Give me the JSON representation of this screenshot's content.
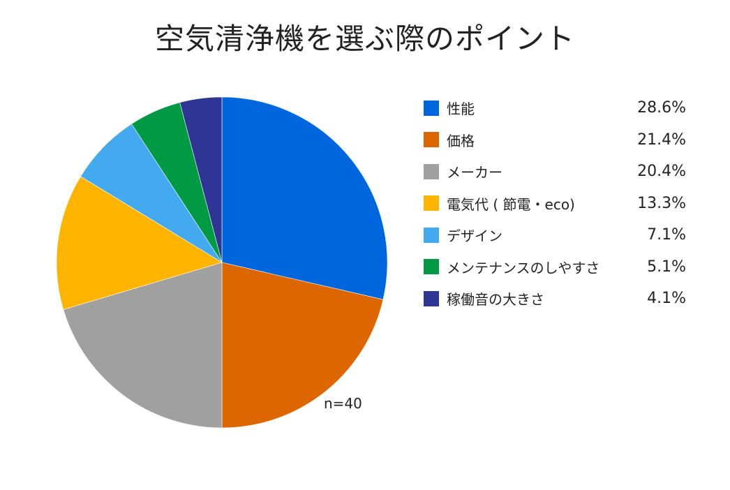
{
  "chart_data": {
    "type": "pie",
    "title": "空気清浄機を選ぶ際のポイント",
    "note": "n=40",
    "legend_position": "right",
    "slices": [
      {
        "label": "性能",
        "value": 28.6,
        "display": "28.6%",
        "color": "#0066DD"
      },
      {
        "label": "価格",
        "value": 21.4,
        "display": "21.4%",
        "color": "#DD6600"
      },
      {
        "label": "メーカー",
        "value": 20.4,
        "display": "20.4%",
        "color": "#A0A0A0"
      },
      {
        "label": "電気代 ( 節電・eco)",
        "value": 13.3,
        "display": "13.3%",
        "color": "#FFB400"
      },
      {
        "label": "デザイン",
        "value": 7.1,
        "display": "7.1%",
        "color": "#44AAF0"
      },
      {
        "label": "メンテナンスのしやすさ",
        "value": 5.1,
        "display": "5.1%",
        "color": "#009A44"
      },
      {
        "label": "稼働音の大きさ",
        "value": 4.1,
        "display": "4.1%",
        "color": "#2E3594"
      }
    ]
  }
}
